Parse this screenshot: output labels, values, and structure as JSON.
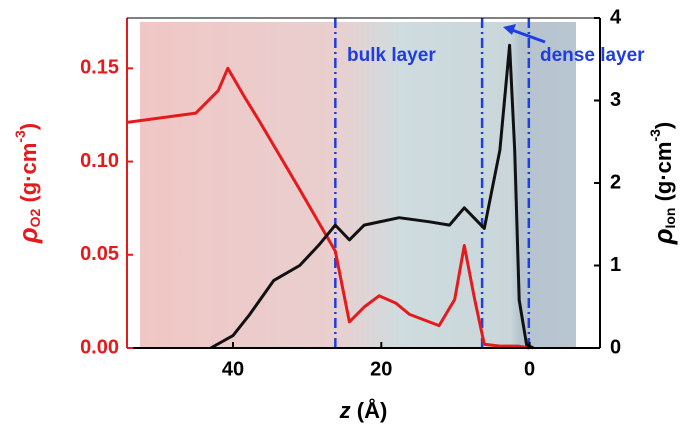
{
  "chart_data": {
    "type": "line",
    "xlabel": [
      "z",
      " (Å)"
    ],
    "ylabel": [
      "ρ",
      "O2",
      " (g·cm",
      "-3",
      ")"
    ],
    "y2label": [
      "ρ",
      "Ion",
      " (g·cm",
      "-3",
      ")"
    ],
    "xlim": [
      54.3,
      -9.5
    ],
    "xticks": [
      40,
      20,
      0
    ],
    "ylim": [
      0,
      0.177
    ],
    "yticks": [
      {
        "value": 0,
        "label": "0.00"
      },
      0.05,
      {
        "value": 0.1,
        "label": "0.10"
      },
      0.15
    ],
    "y2lim": [
      0,
      4
    ],
    "y2ticks": [
      0,
      1,
      2,
      3,
      4
    ],
    "vlines": [
      26.2,
      6.4,
      0.1
    ],
    "annotations": [
      "bulk layer",
      "dense layer"
    ],
    "series": [
      {
        "color": "#e41a1c",
        "x": [
          54.3,
          45,
          42,
          40.7,
          38.5,
          36.5,
          31,
          26.2,
          24.3,
          22.3,
          20.3,
          18,
          16.2,
          12.2,
          10.1,
          8.8,
          7.4,
          6.1,
          4,
          1.5,
          0
        ],
        "values": [
          0.121,
          0.126,
          0.138,
          0.15,
          0.135,
          0.122,
          0.085,
          0.052,
          0.014,
          0.022,
          0.028,
          0.024,
          0.018,
          0.012,
          0.026,
          0.055,
          0.026,
          0.002,
          0.001,
          0.001,
          0
        ]
      },
      {
        "color": "#111111",
        "axis": "y2",
        "x": [
          43,
          40,
          37.8,
          34.5,
          31,
          28.4,
          26.2,
          24.3,
          22.3,
          17.6,
          13.5,
          10.8,
          8.8,
          6.1,
          4,
          2.7,
          2,
          1.4,
          0.4,
          -0.5
        ],
        "values": [
          0,
          0.15,
          0.4,
          0.82,
          1.0,
          1.25,
          1.49,
          1.31,
          1.49,
          1.58,
          1.53,
          1.49,
          1.7,
          1.45,
          2.4,
          3.67,
          2.4,
          0.58,
          0.04,
          0
        ]
      }
    ]
  }
}
